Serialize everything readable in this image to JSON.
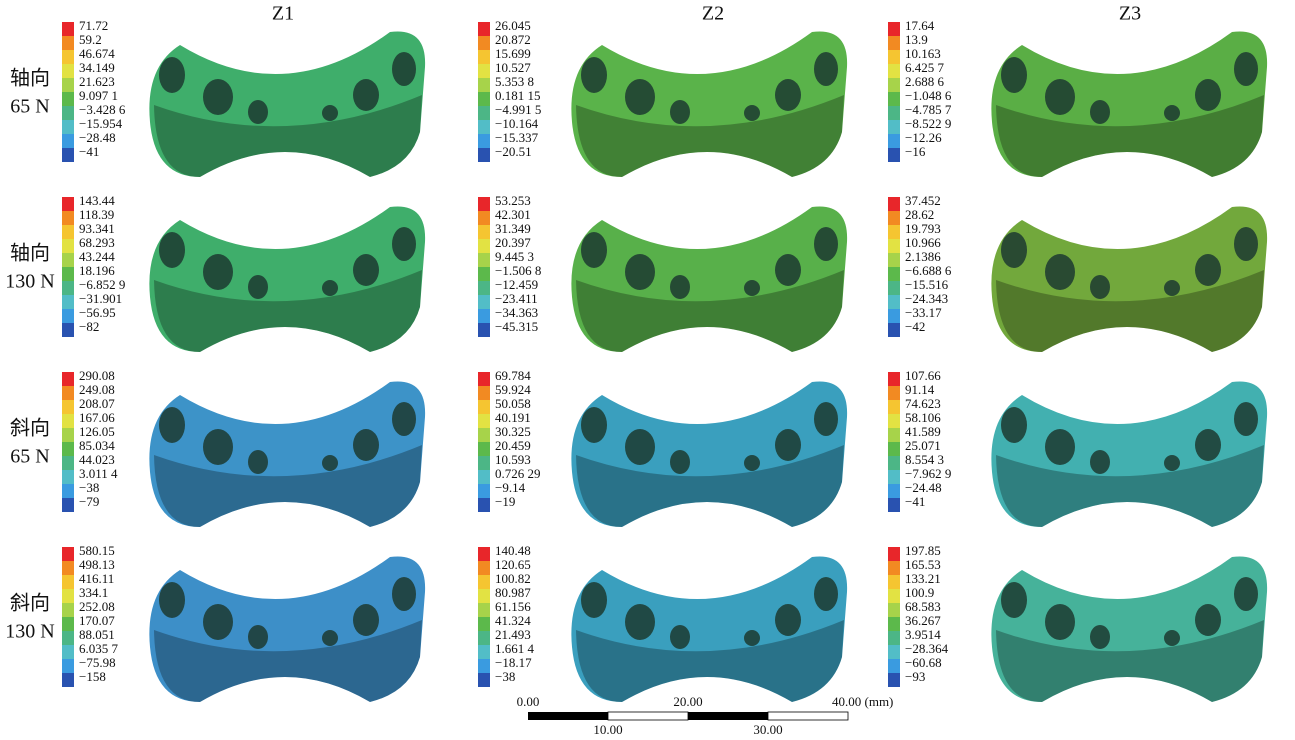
{
  "columns": [
    "Z1",
    "Z2",
    "Z3"
  ],
  "rows": [
    {
      "label": [
        "轴向",
        "65 N"
      ],
      "legends": [
        [
          "71.72",
          "59.2",
          "46.674",
          "34.149",
          "21.623",
          "9.097 1",
          "−3.428 6",
          "−15.954",
          "−28.48",
          "−41"
        ],
        [
          "26.045",
          "20.872",
          "15.699",
          "10.527",
          "5.353 8",
          "0.181 15",
          "−4.991 5",
          "−10.164",
          "−15.337",
          "−20.51"
        ],
        [
          "17.64",
          "13.9",
          "10.163",
          "6.425 7",
          "2.688 6",
          "−1.048 6",
          "−4.785 7",
          "−8.522 9",
          "−12.26",
          "−16"
        ]
      ]
    },
    {
      "label": [
        "轴向",
        "130 N"
      ],
      "legends": [
        [
          "143.44",
          "118.39",
          "93.341",
          "68.293",
          "43.244",
          "18.196",
          "−6.852 9",
          "−31.901",
          "−56.95",
          "−82"
        ],
        [
          "53.253",
          "42.301",
          "31.349",
          "20.397",
          "9.445 3",
          "−1.506 8",
          "−12.459",
          "−23.411",
          "−34.363",
          "−45.315"
        ],
        [
          "37.452",
          "28.62",
          "19.793",
          "10.966",
          "2.1386",
          "−6.688 6",
          "−15.516",
          "−24.343",
          "−33.17",
          "−42"
        ]
      ]
    },
    {
      "label": [
        "斜向",
        "65 N"
      ],
      "legends": [
        [
          "290.08",
          "249.08",
          "208.07",
          "167.06",
          "126.05",
          "85.034",
          "44.023",
          "3.011 4",
          "−38",
          "−79"
        ],
        [
          "69.784",
          "59.924",
          "50.058",
          "40.191",
          "30.325",
          "20.459",
          "10.593",
          "0.726 29",
          "−9.14",
          "−19"
        ],
        [
          "107.66",
          "91.14",
          "74.623",
          "58.106",
          "41.589",
          "25.071",
          "8.554 3",
          "−7.962 9",
          "−24.48",
          "−41"
        ]
      ]
    },
    {
      "label": [
        "斜向",
        "130 N"
      ],
      "legends": [
        [
          "580.15",
          "498.13",
          "416.11",
          "334.1",
          "252.08",
          "170.07",
          "88.051",
          "6.035 7",
          "−75.98",
          "−158"
        ],
        [
          "140.48",
          "120.65",
          "100.82",
          "80.987",
          "61.156",
          "41.324",
          "21.493",
          "1.661 4",
          "−18.17",
          "−38"
        ],
        [
          "197.85",
          "165.53",
          "133.21",
          "100.9",
          "68.583",
          "36.267",
          "3.9514",
          "−28.364",
          "−60.68",
          "−93"
        ]
      ]
    }
  ],
  "scale_bar": {
    "labels": [
      "0.00",
      "10.00",
      "20.00",
      "30.00",
      "40.00 (mm)"
    ]
  }
}
